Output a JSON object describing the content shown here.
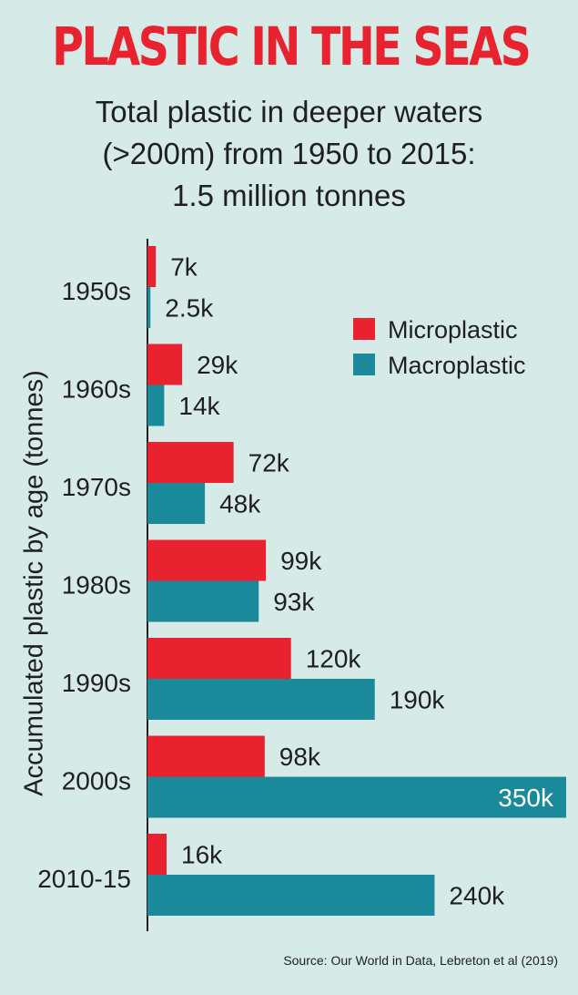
{
  "header": {
    "title": "PLASTIC IN THE SEAS",
    "subtitle_lines": [
      "Total plastic in deeper waters",
      "(>200m) from 1950 to 2015:",
      "1.5 million tonnes"
    ]
  },
  "source": "Source: Our World in Data, Lebreton et al (2019)",
  "colors": {
    "background": "#d6ebe8",
    "microplastic": "#e8232f",
    "macroplastic": "#1a8a9a",
    "title": "#e8232f"
  },
  "chart_data": {
    "type": "bar",
    "orientation": "horizontal",
    "ylabel": "Accumulated plastic by age (tonnes)",
    "categories": [
      "1950s",
      "1960s",
      "1970s",
      "1980s",
      "1990s",
      "2000s",
      "2010-15"
    ],
    "series": [
      {
        "name": "Microplastic",
        "values": [
          7000,
          29000,
          72000,
          99000,
          120000,
          98000,
          16000
        ],
        "labels": [
          "7k",
          "29k",
          "72k",
          "99k",
          "120k",
          "98k",
          "16k"
        ]
      },
      {
        "name": "Macroplastic",
        "values": [
          2500,
          14000,
          48000,
          93000,
          190000,
          350000,
          240000
        ],
        "labels": [
          "2.5k",
          "14k",
          "48k",
          "93k",
          "190k",
          "350k",
          "240k"
        ]
      }
    ],
    "xlim": [
      0,
      350000
    ],
    "grid": false,
    "legend_position": "top-right"
  }
}
